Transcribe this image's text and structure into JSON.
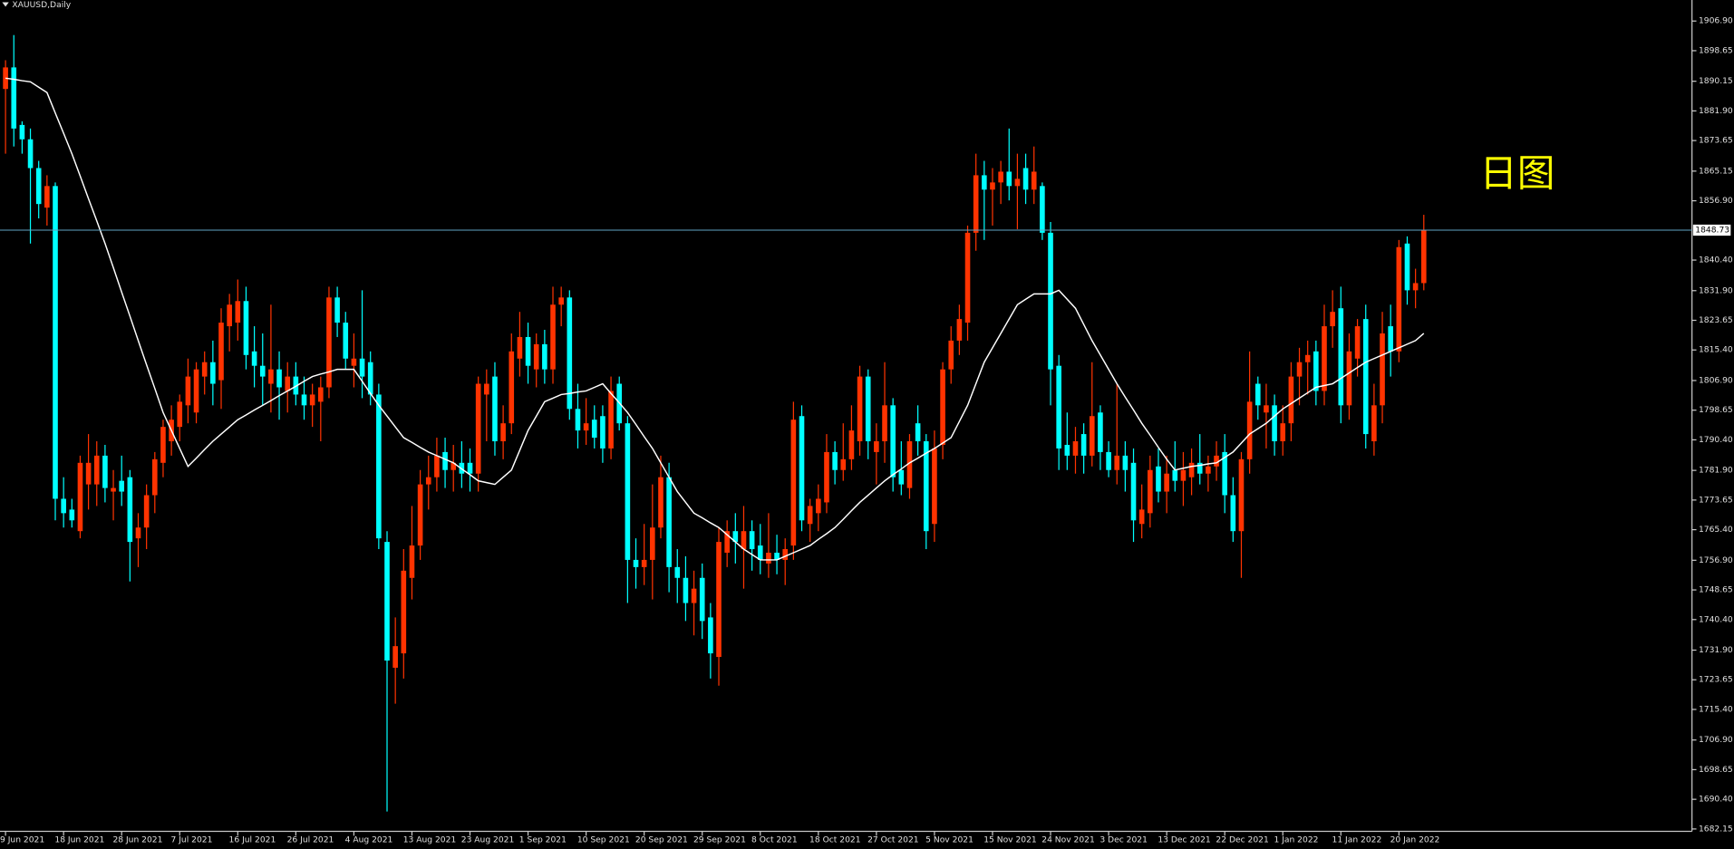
{
  "chart_data": {
    "type": "candlestick",
    "title": "XAUUSD,Daily",
    "annotation": "日图",
    "categories": [
      "9 Jun 2021",
      null,
      null,
      null,
      null,
      null,
      null,
      "18 Jun 2021",
      null,
      null,
      null,
      null,
      null,
      null,
      "28 Jun 2021",
      null,
      null,
      null,
      null,
      null,
      null,
      "7 Jul 2021",
      null,
      null,
      null,
      null,
      null,
      null,
      "16 Jul 2021",
      null,
      null,
      null,
      null,
      null,
      null,
      "26 Jul 2021",
      null,
      null,
      null,
      null,
      null,
      null,
      "4 Aug 2021",
      null,
      null,
      null,
      null,
      null,
      null,
      "13 Aug 2021",
      null,
      null,
      null,
      null,
      null,
      null,
      "23 Aug 2021",
      null,
      null,
      null,
      null,
      null,
      null,
      "1 Sep 2021",
      null,
      null,
      null,
      null,
      null,
      null,
      "10 Sep 2021",
      null,
      null,
      null,
      null,
      null,
      null,
      "20 Sep 2021",
      null,
      null,
      null,
      null,
      null,
      null,
      "29 Sep 2021",
      null,
      null,
      null,
      null,
      null,
      null,
      "8 Oct 2021",
      null,
      null,
      null,
      null,
      null,
      null,
      "18 Oct 2021",
      null,
      null,
      null,
      null,
      null,
      null,
      "27 Oct 2021",
      null,
      null,
      null,
      null,
      null,
      null,
      "5 Nov 2021",
      null,
      null,
      null,
      null,
      null,
      null,
      "15 Nov 2021",
      null,
      null,
      null,
      null,
      null,
      null,
      "24 Nov 2021",
      null,
      null,
      null,
      null,
      null,
      null,
      "3 Dec 2021",
      null,
      null,
      null,
      null,
      null,
      null,
      "13 Dec 2021",
      null,
      null,
      null,
      null,
      null,
      null,
      "22 Dec 2021",
      null,
      null,
      null,
      null,
      null,
      null,
      "1 Jan 2022",
      null,
      null,
      null,
      null,
      null,
      null,
      "11 Jan 2022",
      null,
      null,
      null,
      null,
      null,
      null,
      "20 Jan 2022",
      null,
      null,
      null
    ],
    "open": [
      1888,
      1894,
      1878,
      1874,
      1866,
      1855,
      1861,
      1774,
      1771,
      1765,
      1778,
      1778,
      1786,
      1776,
      1779,
      1780,
      1763,
      1766,
      1775,
      1784,
      1790,
      1794,
      1800,
      1798,
      1808,
      1812,
      1807,
      1822,
      1823,
      1829,
      1815,
      1811,
      1806,
      1810,
      1804,
      1808,
      1803,
      1800,
      1801,
      1805,
      1830,
      1823,
      1811,
      1813,
      1812,
      1803,
      1762,
      1727,
      1731,
      1752,
      1761,
      1778,
      1780,
      1787,
      1782,
      1784,
      1784,
      1781,
      1803,
      1808,
      1790,
      1795,
      1813,
      1819,
      1810,
      1817,
      1810,
      1828,
      1830,
      1799,
      1793,
      1796,
      1797,
      1788,
      1806,
      1795,
      1757,
      1755,
      1757,
      1766,
      1780,
      1755,
      1752,
      1745,
      1752,
      1741,
      1730,
      1759,
      1765,
      1760,
      1765,
      1761,
      1756,
      1759,
      1757,
      1761,
      1797,
      1767,
      1770,
      1773,
      1787,
      1782,
      1785,
      1790,
      1808,
      1787,
      1790,
      1800,
      1782,
      1777,
      1795,
      1790,
      1767,
      1789,
      1810,
      1818,
      1823,
      1848,
      1864,
      1860,
      1862,
      1865,
      1861,
      1866,
      1860,
      1861,
      1848,
      1811,
      1789,
      1786,
      1792,
      1786,
      1798,
      1787,
      1782,
      1786,
      1784,
      1767,
      1770,
      1783,
      1776,
      1782,
      1779,
      1780,
      1784,
      1781,
      1783,
      1787,
      1775,
      1765,
      1785,
      1806,
      1798,
      1800,
      1790,
      1795,
      1808,
      1812,
      1815,
      1804,
      1822,
      1827,
      1800,
      1813,
      1824,
      1790,
      1800,
      1822,
      1815,
      1845,
      1832,
      1834
    ],
    "high": [
      1896,
      1903,
      1879,
      1877,
      1868,
      1864,
      1862,
      1780,
      1774,
      1786,
      1792,
      1790,
      1789,
      1782,
      1786,
      1782,
      1770,
      1778,
      1787,
      1796,
      1800,
      1803,
      1813,
      1812,
      1815,
      1818,
      1827,
      1831,
      1835,
      1833,
      1822,
      1820,
      1828,
      1815,
      1812,
      1812,
      1808,
      1806,
      1808,
      1833,
      1833,
      1826,
      1820,
      1832,
      1815,
      1806,
      1765,
      1741,
      1760,
      1772,
      1782,
      1786,
      1791,
      1791,
      1789,
      1790,
      1788,
      1808,
      1810,
      1812,
      1800,
      1820,
      1826,
      1823,
      1820,
      1821,
      1833,
      1833,
      1832,
      1806,
      1802,
      1800,
      1800,
      1808,
      1808,
      1797,
      1763,
      1767,
      1778,
      1786,
      1784,
      1760,
      1758,
      1754,
      1756,
      1745,
      1766,
      1768,
      1770,
      1772,
      1768,
      1767,
      1770,
      1764,
      1763,
      1801,
      1800,
      1774,
      1778,
      1792,
      1790,
      1795,
      1800,
      1811,
      1810,
      1795,
      1812,
      1802,
      1790,
      1792,
      1800,
      1792,
      1793,
      1812,
      1822,
      1828,
      1850,
      1870,
      1868,
      1866,
      1868,
      1877,
      1870,
      1870,
      1872,
      1862,
      1851,
      1814,
      1798,
      1794,
      1795,
      1812,
      1800,
      1790,
      1806,
      1790,
      1788,
      1778,
      1786,
      1788,
      1786,
      1790,
      1787,
      1788,
      1792,
      1786,
      1790,
      1792,
      1780,
      1787,
      1815,
      1808,
      1806,
      1803,
      1800,
      1812,
      1816,
      1818,
      1818,
      1828,
      1832,
      1833,
      1820,
      1824,
      1828,
      1806,
      1826,
      1828,
      1846,
      1847,
      1838,
      1853
    ],
    "low": [
      1870,
      1872,
      1870,
      1845,
      1852,
      1850,
      1768,
      1766,
      1766,
      1763,
      1771,
      1772,
      1773,
      1768,
      1772,
      1751,
      1755,
      1760,
      1770,
      1780,
      1786,
      1790,
      1795,
      1795,
      1803,
      1800,
      1799,
      1815,
      1818,
      1810,
      1805,
      1800,
      1798,
      1796,
      1798,
      1800,
      1796,
      1794,
      1790,
      1802,
      1819,
      1810,
      1805,
      1802,
      1800,
      1760,
      1687,
      1717,
      1724,
      1746,
      1757,
      1771,
      1776,
      1777,
      1776,
      1777,
      1776,
      1776,
      1790,
      1786,
      1785,
      1792,
      1808,
      1806,
      1805,
      1806,
      1806,
      1822,
      1796,
      1788,
      1789,
      1788,
      1784,
      1785,
      1793,
      1745,
      1749,
      1750,
      1746,
      1763,
      1748,
      1745,
      1740,
      1736,
      1735,
      1724,
      1722,
      1755,
      1756,
      1749,
      1754,
      1753,
      1752,
      1753,
      1750,
      1757,
      1765,
      1762,
      1765,
      1770,
      1778,
      1779,
      1782,
      1786,
      1785,
      1778,
      1784,
      1776,
      1775,
      1774,
      1786,
      1760,
      1762,
      1785,
      1806,
      1814,
      1818,
      1843,
      1846,
      1850,
      1856,
      1857,
      1849,
      1856,
      1856,
      1846,
      1800,
      1782,
      1782,
      1781,
      1781,
      1783,
      1782,
      1780,
      1778,
      1776,
      1762,
      1763,
      1766,
      1773,
      1770,
      1776,
      1772,
      1775,
      1778,
      1776,
      1779,
      1770,
      1762,
      1752,
      1781,
      1796,
      1788,
      1786,
      1786,
      1790,
      1800,
      1803,
      1800,
      1800,
      1816,
      1795,
      1796,
      1808,
      1788,
      1786,
      1795,
      1808,
      1812,
      1828,
      1827,
      1832
    ],
    "close": [
      1894,
      1877,
      1874,
      1866,
      1856,
      1861,
      1774,
      1770,
      1768,
      1784,
      1784,
      1786,
      1777,
      1777,
      1776,
      1762,
      1766,
      1775,
      1785,
      1794,
      1796,
      1801,
      1808,
      1810,
      1812,
      1806,
      1823,
      1828,
      1829,
      1814,
      1811,
      1808,
      1810,
      1805,
      1808,
      1803,
      1800,
      1803,
      1805,
      1830,
      1823,
      1813,
      1813,
      1808,
      1803,
      1763,
      1729,
      1733,
      1754,
      1761,
      1778,
      1780,
      1786,
      1782,
      1784,
      1781,
      1781,
      1806,
      1806,
      1790,
      1795,
      1815,
      1819,
      1811,
      1817,
      1810,
      1828,
      1830,
      1799,
      1793,
      1795,
      1791,
      1788,
      1804,
      1795,
      1757,
      1755,
      1757,
      1766,
      1780,
      1755,
      1752,
      1745,
      1749,
      1740,
      1731,
      1762,
      1765,
      1762,
      1765,
      1760,
      1757,
      1759,
      1757,
      1760,
      1796,
      1768,
      1772,
      1774,
      1787,
      1782,
      1785,
      1793,
      1808,
      1790,
      1790,
      1800,
      1780,
      1778,
      1790,
      1790,
      1765,
      1788,
      1810,
      1818,
      1824,
      1848,
      1864,
      1860,
      1862,
      1865,
      1861,
      1863,
      1860,
      1865,
      1848,
      1810,
      1788,
      1786,
      1790,
      1786,
      1797,
      1787,
      1782,
      1786,
      1782,
      1768,
      1771,
      1782,
      1776,
      1781,
      1779,
      1782,
      1784,
      1781,
      1783,
      1786,
      1775,
      1765,
      1785,
      1801,
      1800,
      1800,
      1790,
      1795,
      1808,
      1812,
      1814,
      1804,
      1822,
      1826,
      1800,
      1815,
      1822,
      1792,
      1800,
      1820,
      1815,
      1844,
      1832,
      1834,
      1848.73
    ],
    "up_color": "#ff3300",
    "down_color": "#00ffff",
    "ma": {
      "color": "#ffffff",
      "values": [
        1891,
        1890.7,
        1890.3,
        1890,
        1888.5,
        1887,
        1881.3,
        1875.7,
        1870,
        1863.8,
        1857.5,
        1851.3,
        1845,
        1838.3,
        1831.5,
        1824.8,
        1818,
        1811.3,
        1804.7,
        1798,
        1793,
        1788,
        1783,
        1785.3,
        1787.7,
        1790,
        1792,
        1794,
        1796,
        1797.3,
        1798.7,
        1800,
        1801.3,
        1802.7,
        1804,
        1805.3,
        1806.7,
        1808,
        1808.7,
        1809.3,
        1810,
        1810,
        1810,
        1806.7,
        1803.3,
        1800,
        1797,
        1794,
        1791,
        1789.7,
        1788.3,
        1787,
        1786,
        1785,
        1784,
        1782.3,
        1780.7,
        1779,
        1778.5,
        1778,
        1780,
        1782,
        1787.5,
        1793,
        1797,
        1801,
        1802,
        1803,
        1803.3,
        1803.7,
        1804,
        1805,
        1806,
        1803.3,
        1800.7,
        1798,
        1794.7,
        1791.3,
        1788,
        1784,
        1780,
        1776,
        1773,
        1770,
        1768.7,
        1767.3,
        1766,
        1764,
        1762,
        1760,
        1758.5,
        1757,
        1757,
        1757,
        1758,
        1759,
        1760,
        1761,
        1762.7,
        1764.3,
        1766,
        1768.3,
        1770.7,
        1773,
        1775,
        1777,
        1779,
        1780.7,
        1782.3,
        1784,
        1785.3,
        1786.7,
        1788,
        1789.5,
        1791,
        1795.5,
        1800,
        1806,
        1812,
        1816,
        1820,
        1824,
        1828,
        1829.5,
        1831,
        1831,
        1831,
        1832,
        1829.5,
        1827,
        1822.5,
        1818,
        1814,
        1810,
        1806,
        1802.3,
        1798.7,
        1795,
        1791.7,
        1788.3,
        1785,
        1782,
        1782.5,
        1783,
        1783.3,
        1783.7,
        1784,
        1785.5,
        1787,
        1789.5,
        1792,
        1793.5,
        1795,
        1797,
        1799,
        1800.5,
        1802,
        1803.5,
        1805,
        1805.5,
        1806,
        1807.5,
        1809,
        1810.5,
        1812,
        1813,
        1814,
        1815,
        1816,
        1817,
        1818,
        1820
      ]
    },
    "current_price": 1848.73,
    "current_price_color": "#5fa3c4",
    "ylim": [
      1681.5,
      1912.75
    ],
    "yticks": [
      {
        "value": 1906.9,
        "label": "1906.90"
      },
      1898.65,
      1890.15,
      {
        "value": 1881.9,
        "label": "1881.90"
      },
      1873.65,
      1865.15,
      {
        "value": 1856.9,
        "label": "1856.90"
      },
      {
        "value": 1840.4,
        "label": "1840.40"
      },
      {
        "value": 1831.9,
        "label": "1831.90"
      },
      1823.65,
      {
        "value": 1815.4,
        "label": "1815.40"
      },
      {
        "value": 1806.9,
        "label": "1806.90"
      },
      1798.65,
      {
        "value": 1790.4,
        "label": "1790.40"
      },
      {
        "value": 1781.9,
        "label": "1781.90"
      },
      1773.65,
      {
        "value": 1765.4,
        "label": "1765.40"
      },
      {
        "value": 1756.9,
        "label": "1756.90"
      },
      1748.65,
      {
        "value": 1740.4,
        "label": "1740.40"
      },
      {
        "value": 1731.9,
        "label": "1731.90"
      },
      1723.65,
      {
        "value": 1715.4,
        "label": "1715.40"
      },
      {
        "value": 1706.9,
        "label": "1706.90"
      },
      1698.65,
      {
        "value": 1690.4,
        "label": "1690.40"
      },
      1682.15
    ]
  }
}
